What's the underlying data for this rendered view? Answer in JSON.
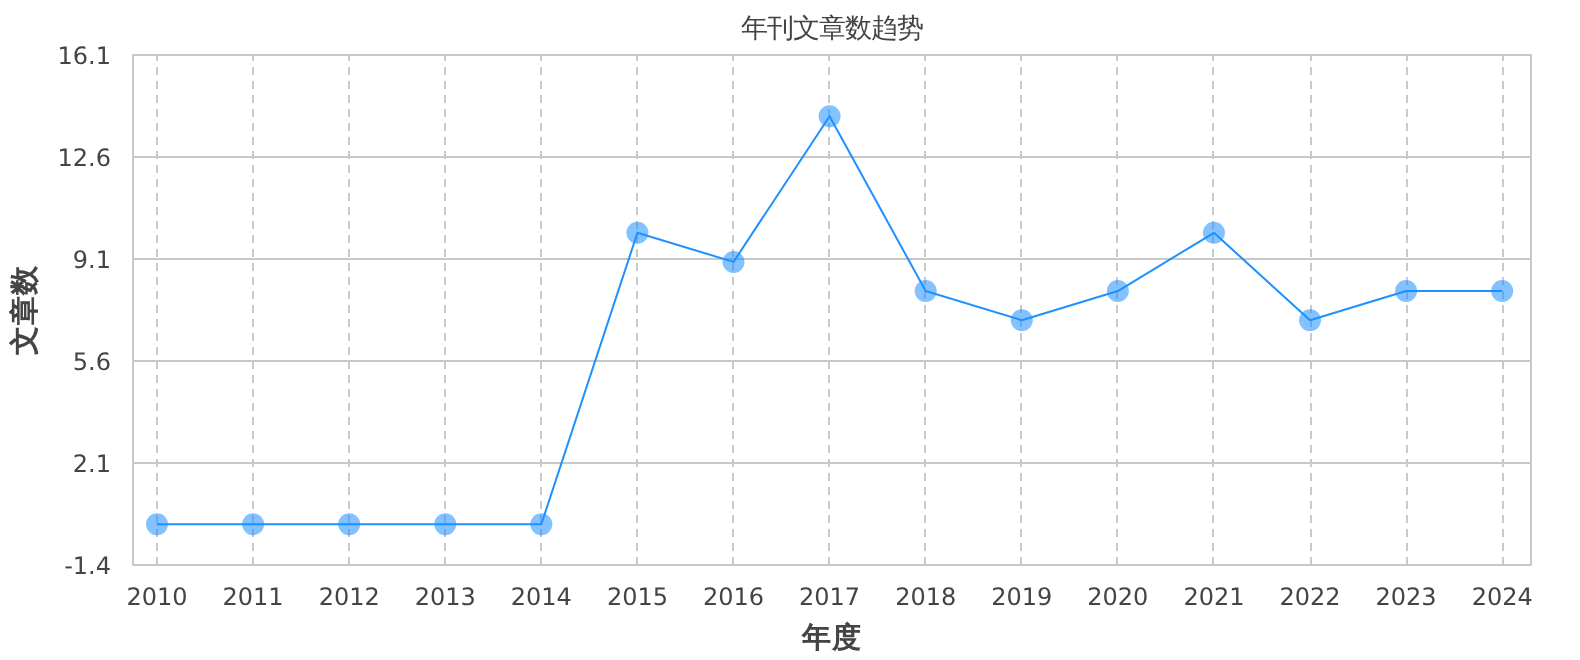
{
  "chart_data": {
    "type": "line",
    "title": "年刊文章数趋势",
    "xlabel": "年度",
    "ylabel": "文章数",
    "categories": [
      "2010",
      "2011",
      "2012",
      "2013",
      "2014",
      "2015",
      "2016",
      "2017",
      "2018",
      "2019",
      "2020",
      "2021",
      "2022",
      "2023",
      "2024"
    ],
    "series": [
      {
        "color": "#1e90ff",
        "values": [
          0,
          0,
          0,
          0,
          0,
          10,
          9,
          14,
          8,
          7,
          8,
          10,
          7,
          8,
          8
        ]
      }
    ],
    "ylim": [
      -1.4,
      16.1
    ],
    "yticks": [
      -1.4,
      2.1,
      5.6,
      9.1,
      12.6,
      16.1
    ],
    "grid": true,
    "marker": "circle",
    "line_style": "solid"
  }
}
